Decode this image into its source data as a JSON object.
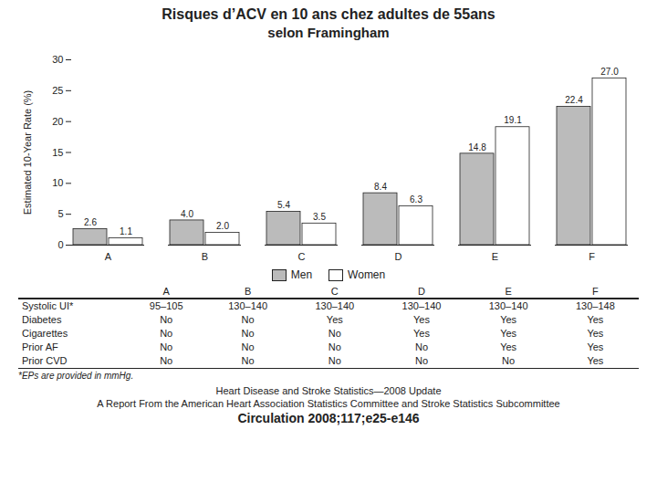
{
  "chart_data": {
    "type": "bar",
    "title": "Risques d’ACV en 10 ans chez adultes de 55ans",
    "subtitle": "selon Framingham",
    "categories": [
      "A",
      "B",
      "C",
      "D",
      "E",
      "F"
    ],
    "series": [
      {
        "name": "Men",
        "color": "#bbbbbb",
        "values": [
          2.6,
          4.0,
          5.4,
          8.4,
          14.8,
          22.4
        ],
        "value_labels": [
          "2.6",
          "4.0",
          "5.4",
          "8.4",
          "14.8",
          "22.4"
        ]
      },
      {
        "name": "Women",
        "color": "#ffffff",
        "values": [
          1.1,
          2.0,
          3.5,
          6.3,
          19.1,
          27.0
        ],
        "value_labels": [
          "1.1",
          "2.0",
          "3.5",
          "6.3",
          "19.1",
          "27.0"
        ]
      }
    ],
    "ylabel": "Estimated 10-Year Rate (%)",
    "ylim": [
      0,
      30
    ],
    "yticks": [
      0,
      5,
      10,
      15,
      20,
      25,
      30
    ],
    "data_labels": true,
    "legend": "bottom",
    "grid": false,
    "table": {
      "columns": [
        "A",
        "B",
        "C",
        "D",
        "E",
        "F"
      ],
      "rows": [
        [
          "Systolic UI*",
          "95–105",
          "130–140",
          "130–140",
          "130–140",
          "130–140",
          "130–148"
        ],
        [
          "Diabetes",
          "No",
          "No",
          "Yes",
          "Yes",
          "Yes",
          "Yes"
        ],
        [
          "Cigarettes",
          "No",
          "No",
          "No",
          "Yes",
          "Yes",
          "Yes"
        ],
        [
          "Prior AF",
          "No",
          "No",
          "No",
          "No",
          "Yes",
          "Yes"
        ],
        [
          "Prior CVD",
          "No",
          "No",
          "No",
          "No",
          "No",
          "Yes"
        ]
      ]
    },
    "table_note": "*EPs are provided in mmHg.",
    "footer": [
      "Heart Disease and Stroke Statistics—2008 Update",
      "A Report From the American Heart Association Statistics Committee and Stroke Statistics Subcommittee",
      "Circulation 2008;117;e25-e146"
    ]
  }
}
